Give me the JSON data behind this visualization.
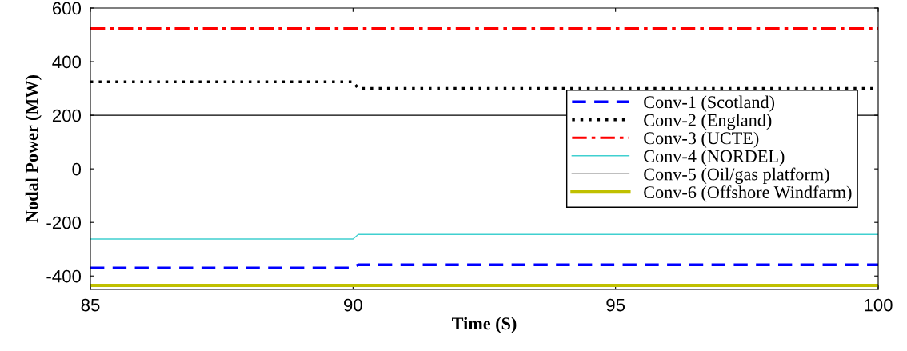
{
  "chart_data": {
    "type": "line",
    "xlabel": "Time (S)",
    "ylabel": "Nodal Power (MW)",
    "xlim": [
      85,
      100
    ],
    "xticks": [
      85,
      90,
      95,
      100
    ],
    "ylim": [
      -450,
      600
    ],
    "yticks": [
      -400,
      -200,
      0,
      200,
      400,
      600
    ],
    "grid": false,
    "legend": "right",
    "series": [
      {
        "name": "Conv-1 (Scotland)",
        "color": "#0000ff",
        "line_style": "dashed",
        "x": [
          85,
          90,
          90.1,
          100
        ],
        "values": [
          -370,
          -370,
          -358,
          -358
        ]
      },
      {
        "name": "Conv-2 (England)",
        "color": "#000000",
        "line_style": "dotted",
        "x": [
          85,
          90,
          90.1,
          100
        ],
        "values": [
          325,
          325,
          300,
          300
        ]
      },
      {
        "name": "Conv-3 (UCTE)",
        "color": "#ff0000",
        "line_style": "dashdot",
        "x": [
          85,
          100
        ],
        "values": [
          524,
          524
        ]
      },
      {
        "name": "Conv-4 (NORDEL)",
        "color": "#40d0d0",
        "line_style": "solid",
        "x": [
          85,
          90,
          90.1,
          100
        ],
        "values": [
          -262,
          -262,
          -245,
          -245
        ]
      },
      {
        "name": "Conv-5 (Oil/gas platform)",
        "color": "#000000",
        "line_style": "solid",
        "x": [
          85,
          100
        ],
        "values": [
          200,
          200
        ]
      },
      {
        "name": "Conv-6 (Offshore Windfarm)",
        "color": "#c0c000",
        "line_style": "solid",
        "x": [
          85,
          100
        ],
        "values": [
          -435,
          -435
        ]
      }
    ]
  }
}
